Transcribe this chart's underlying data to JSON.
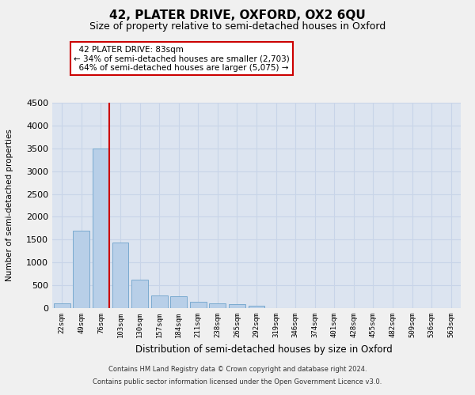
{
  "title": "42, PLATER DRIVE, OXFORD, OX2 6QU",
  "subtitle": "Size of property relative to semi-detached houses in Oxford",
  "xlabel": "Distribution of semi-detached houses by size in Oxford",
  "ylabel": "Number of semi-detached properties",
  "property_label": "42 PLATER DRIVE: 83sqm",
  "pct_smaller": 34,
  "pct_larger": 64,
  "n_smaller": 2703,
  "n_larger": 5075,
  "bin_labels": [
    "22sqm",
    "49sqm",
    "76sqm",
    "103sqm",
    "130sqm",
    "157sqm",
    "184sqm",
    "211sqm",
    "238sqm",
    "265sqm",
    "292sqm",
    "319sqm",
    "346sqm",
    "374sqm",
    "401sqm",
    "428sqm",
    "455sqm",
    "482sqm",
    "509sqm",
    "536sqm",
    "563sqm"
  ],
  "bar_heights": [
    110,
    1700,
    3500,
    1430,
    620,
    270,
    260,
    140,
    100,
    90,
    60,
    0,
    0,
    0,
    0,
    0,
    0,
    0,
    0,
    0,
    0
  ],
  "bar_color": "#b8cfe8",
  "bar_edge_color": "#7aaad0",
  "marker_line_color": "#cc0000",
  "marker_bin_index": 2,
  "ylim": [
    0,
    4500
  ],
  "yticks": [
    0,
    500,
    1000,
    1500,
    2000,
    2500,
    3000,
    3500,
    4000,
    4500
  ],
  "annotation_box_color": "#ffffff",
  "annotation_box_edge": "#cc0000",
  "grid_color": "#c8d4e8",
  "bg_color": "#dce4f0",
  "fig_bg_color": "#f0f0f0",
  "footer_line1": "Contains HM Land Registry data © Crown copyright and database right 2024.",
  "footer_line2": "Contains public sector information licensed under the Open Government Licence v3.0."
}
